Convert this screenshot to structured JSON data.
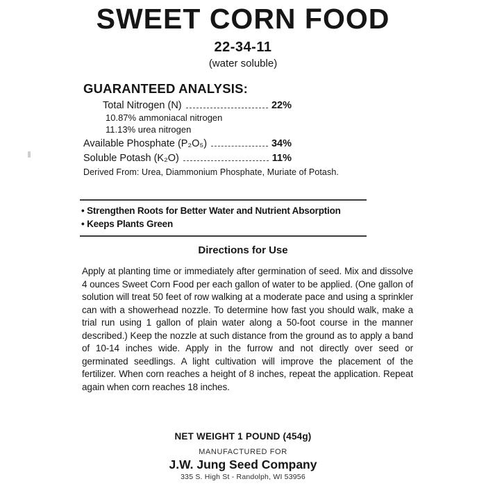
{
  "title": "SWEET CORN FOOD",
  "grade": "22-34-11",
  "soluble_note": "(water soluble)",
  "analysis": {
    "heading": "GUARANTEED ANALYSIS:",
    "rows": [
      {
        "name": "Total Nitrogen (N)",
        "value": "22%"
      },
      {
        "name": "Available Phosphate (P₂O₅)",
        "value": "34%"
      },
      {
        "name": "Soluble Potash (K₂O)",
        "value": "11%"
      }
    ],
    "nitrogen_breakdown": [
      "10.87% ammoniacal nitrogen",
      "11.13% urea nitrogen"
    ],
    "derived_from": "Derived From: Urea, Diammonium Phosphate, Muriate of Potash."
  },
  "benefits": [
    "Strengthen Roots for Better Water and Nutrient Absorption",
    "Keeps Plants Green"
  ],
  "directions": {
    "heading": "Directions for Use",
    "body": "Apply at planting time or immediately after germination of seed. Mix and dissolve 4 ounces Sweet Corn Food per each gallon of water to be applied. (One gallon of solution will treat 50 feet of row walking at a moderate pace and using a sprinkler can with a showerhead nozzle. To determine how fast you should walk, make a trial run using 1 gallon of plain water along a 50-foot course in the manner described.) Keep the nozzle at such distance from the ground as to apply a band of 10-14 inches wide. Apply in the furrow and not directly over seed or germinated seedlings. A light cultivation will improve the placement of the fertilizer. When corn reaches a height of 8 inches, repeat the application. Repeat again when corn reaches 18 inches."
  },
  "footer": {
    "net_weight": "NET WEIGHT 1 POUND (454g)",
    "manufactured_for": "MANUFACTURED FOR",
    "company": "J.W. Jung Seed Company",
    "address": "335 S. High St - Randolph, WI 53956"
  }
}
